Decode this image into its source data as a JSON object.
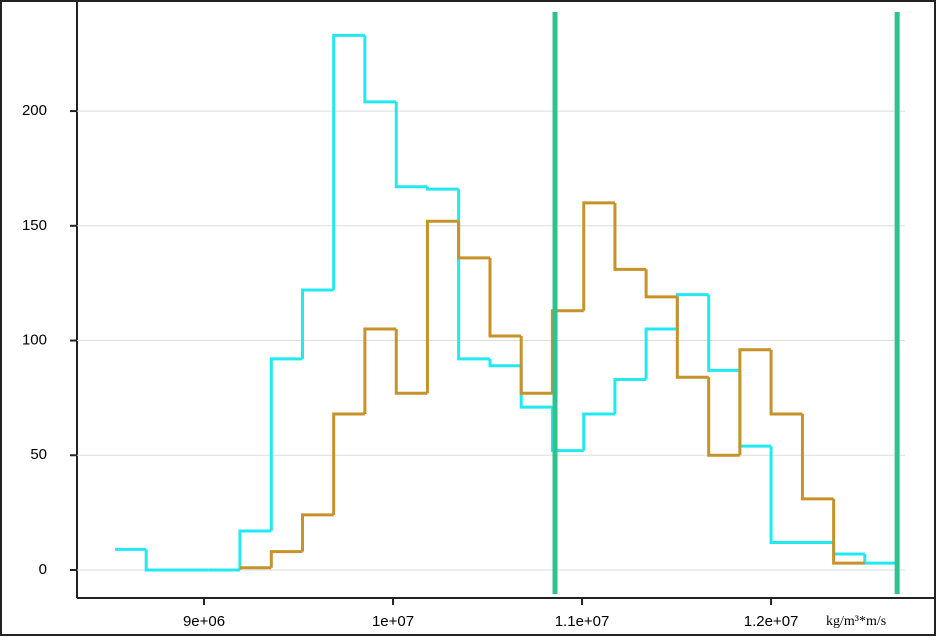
{
  "chart_data": {
    "type": "step-histogram",
    "x_unit_label": "kg/m³*m/s",
    "bins": [
      8529000,
      8694000,
      8860000,
      9025000,
      9190000,
      9356000,
      9521000,
      9686000,
      9851000,
      10017000,
      10182000,
      10347000,
      10513000,
      10678000,
      10843000,
      11009000,
      11174000,
      11339000,
      11504000,
      11670000,
      11835000,
      12000000,
      12166000,
      12331000,
      12496000,
      12661000
    ],
    "series": [
      {
        "color": "#22e8f2",
        "values": [
          9,
          0,
          0,
          0,
          17,
          92,
          122,
          233,
          204,
          167,
          166,
          92,
          89,
          71,
          52,
          68,
          83,
          105,
          120,
          87,
          54,
          12,
          12,
          7,
          3
        ]
      },
      {
        "color": "#c8922a",
        "values": [
          null,
          null,
          null,
          null,
          1,
          8,
          24,
          68,
          105,
          77,
          152,
          136,
          102,
          77,
          113,
          160,
          131,
          119,
          84,
          50,
          96,
          68,
          31,
          3,
          null
        ]
      }
    ],
    "vlines": [
      10857000,
      12667000
    ],
    "vline_color": "#2ec28c",
    "xlim": [
      8328000,
      12862000
    ],
    "ylim": [
      -12.2,
      248.4
    ],
    "xticks": [
      {
        "value": 9000000,
        "label": "9e+06"
      },
      {
        "value": 10000000,
        "label": "1e+07"
      },
      {
        "value": 11000000,
        "label": "1.1e+07"
      },
      {
        "value": 12000000,
        "label": "1.2e+07"
      }
    ],
    "yticks": [
      0,
      50,
      100,
      150,
      200
    ],
    "grid": true
  }
}
